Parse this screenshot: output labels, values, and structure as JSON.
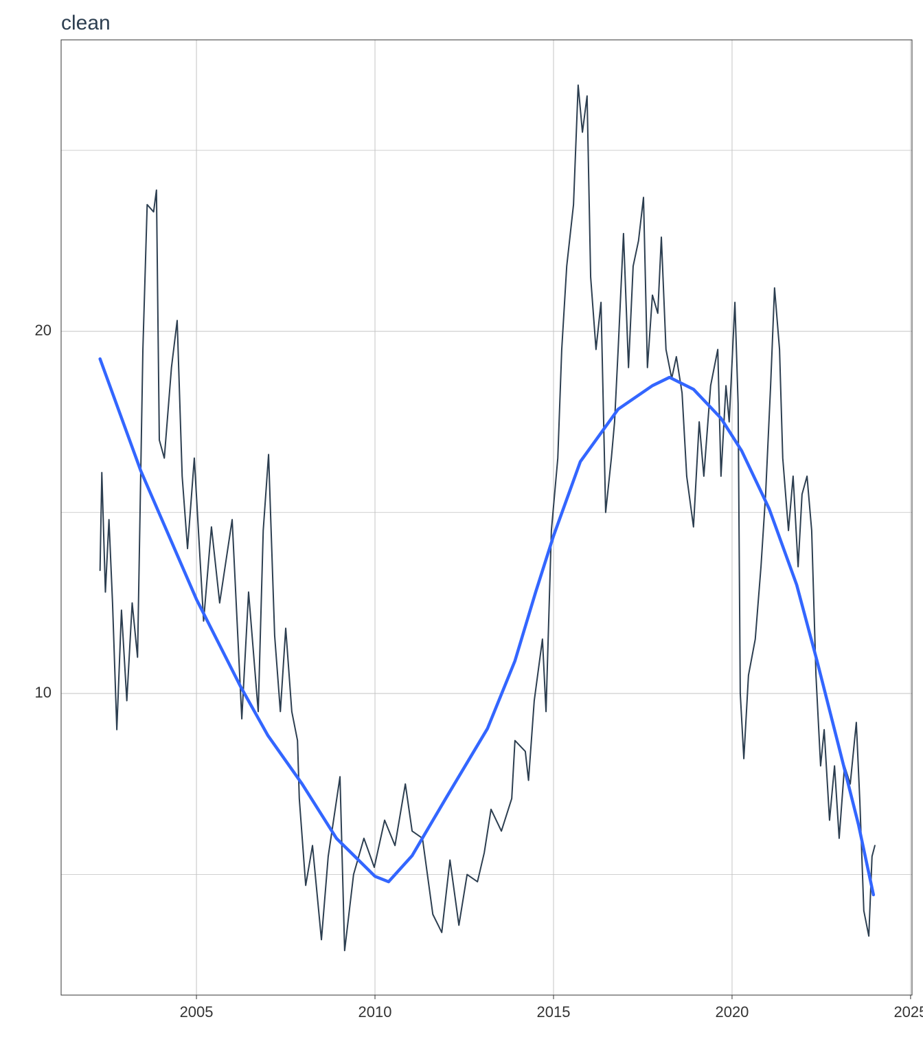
{
  "chart_data": {
    "type": "line",
    "title": "clean",
    "xlim": [
      2001.21,
      2025.04
    ],
    "ylim": [
      1.67,
      28.05
    ],
    "xticks": [
      2005,
      2010,
      2015,
      2020,
      2025
    ],
    "yticks": [
      10,
      20
    ],
    "minor_yticks": [
      5,
      15,
      25
    ],
    "grid": true,
    "series": [
      {
        "color": "#2c3e50",
        "width": 2,
        "x": [
          2002.3,
          2002.35,
          2002.45,
          2002.55,
          2002.65,
          2002.77,
          2002.9,
          2003.05,
          2003.2,
          2003.35,
          2003.5,
          2003.62,
          2003.8,
          2003.88,
          2003.96,
          2004.1,
          2004.3,
          2004.46,
          2004.6,
          2004.75,
          2004.94,
          2005.2,
          2005.42,
          2005.65,
          2006.0,
          2006.27,
          2006.46,
          2006.73,
          2006.87,
          2007.02,
          2007.19,
          2007.35,
          2007.5,
          2007.67,
          2007.83,
          2007.88,
          2008.06,
          2008.25,
          2008.5,
          2008.69,
          2009.02,
          2009.15,
          2009.4,
          2009.69,
          2009.98,
          2010.27,
          2010.56,
          2010.85,
          2011.04,
          2011.33,
          2011.62,
          2011.87,
          2012.1,
          2012.35,
          2012.58,
          2012.87,
          2013.06,
          2013.25,
          2013.54,
          2013.83,
          2013.92,
          2014.21,
          2014.3,
          2014.46,
          2014.69,
          2014.79,
          2014.94,
          2015.12,
          2015.23,
          2015.37,
          2015.56,
          2015.69,
          2015.81,
          2015.94,
          2016.04,
          2016.19,
          2016.33,
          2016.46,
          2016.62,
          2016.71,
          2016.81,
          2016.96,
          2017.1,
          2017.23,
          2017.38,
          2017.52,
          2017.63,
          2017.77,
          2017.92,
          2018.02,
          2018.15,
          2018.31,
          2018.44,
          2018.6,
          2018.73,
          2018.92,
          2019.08,
          2019.21,
          2019.4,
          2019.6,
          2019.69,
          2019.83,
          2019.92,
          2020.08,
          2020.17,
          2020.23,
          2020.33,
          2020.46,
          2020.65,
          2020.81,
          2020.94,
          2021.08,
          2021.19,
          2021.33,
          2021.42,
          2021.58,
          2021.71,
          2021.85,
          2021.96,
          2022.1,
          2022.23,
          2022.35,
          2022.48,
          2022.58,
          2022.73,
          2022.87,
          2023.0,
          2023.15,
          2023.31,
          2023.48,
          2023.58,
          2023.69,
          2023.83,
          2023.92,
          2024.0
        ],
        "values": [
          13.4,
          16.1,
          12.8,
          14.8,
          12.5,
          9.0,
          12.3,
          9.8,
          12.5,
          11.0,
          19.5,
          23.5,
          23.3,
          23.9,
          17.0,
          16.5,
          19.0,
          20.3,
          16.0,
          14.0,
          16.5,
          12.0,
          14.6,
          12.5,
          14.8,
          9.3,
          12.8,
          9.5,
          14.5,
          16.6,
          11.6,
          9.5,
          11.8,
          9.5,
          8.7,
          7.1,
          4.7,
          5.8,
          3.2,
          5.5,
          7.7,
          2.9,
          5.0,
          6.0,
          5.2,
          6.5,
          5.8,
          7.5,
          6.2,
          6.0,
          3.9,
          3.4,
          5.4,
          3.6,
          5.0,
          4.8,
          5.6,
          6.8,
          6.2,
          7.1,
          8.7,
          8.4,
          7.6,
          9.8,
          11.5,
          9.5,
          14.5,
          16.5,
          19.5,
          21.8,
          23.5,
          26.8,
          25.5,
          26.5,
          21.5,
          19.5,
          20.8,
          15.0,
          16.5,
          17.5,
          19.5,
          22.7,
          19.0,
          21.8,
          22.5,
          23.7,
          19.0,
          21.0,
          20.5,
          22.6,
          19.5,
          18.7,
          19.3,
          18.3,
          16.0,
          14.6,
          17.5,
          16.0,
          18.5,
          19.5,
          16.0,
          18.5,
          17.5,
          20.8,
          18.0,
          10.0,
          8.2,
          10.5,
          11.5,
          13.5,
          15.5,
          18.5,
          21.2,
          19.5,
          16.5,
          14.5,
          16.0,
          13.5,
          15.5,
          16.0,
          14.5,
          10.5,
          8.0,
          9.0,
          6.5,
          8.0,
          6.0,
          8.0,
          7.5,
          9.2,
          7.0,
          4.0,
          3.3,
          5.5,
          5.8
        ]
      },
      {
        "color": "#3366ff",
        "width": 4.5,
        "x": [
          2002.3,
          2003.44,
          2005.0,
          2006.23,
          2007.0,
          2007.96,
          2008.92,
          2010.0,
          2010.38,
          2011.04,
          2012.0,
          2013.15,
          2013.92,
          2014.5,
          2015.0,
          2015.75,
          2016.81,
          2017.77,
          2018.25,
          2018.92,
          2019.69,
          2020.27,
          2021.04,
          2021.81,
          2022.38,
          2022.96,
          2023.54,
          2023.96
        ],
        "values": [
          19.24,
          16.15,
          12.6,
          10.2,
          8.84,
          7.5,
          6.0,
          4.95,
          4.8,
          5.52,
          7.13,
          9.03,
          10.9,
          12.8,
          14.35,
          16.4,
          17.85,
          18.5,
          18.73,
          18.4,
          17.6,
          16.7,
          15.1,
          13.0,
          10.9,
          8.65,
          6.38,
          4.44
        ]
      }
    ]
  }
}
